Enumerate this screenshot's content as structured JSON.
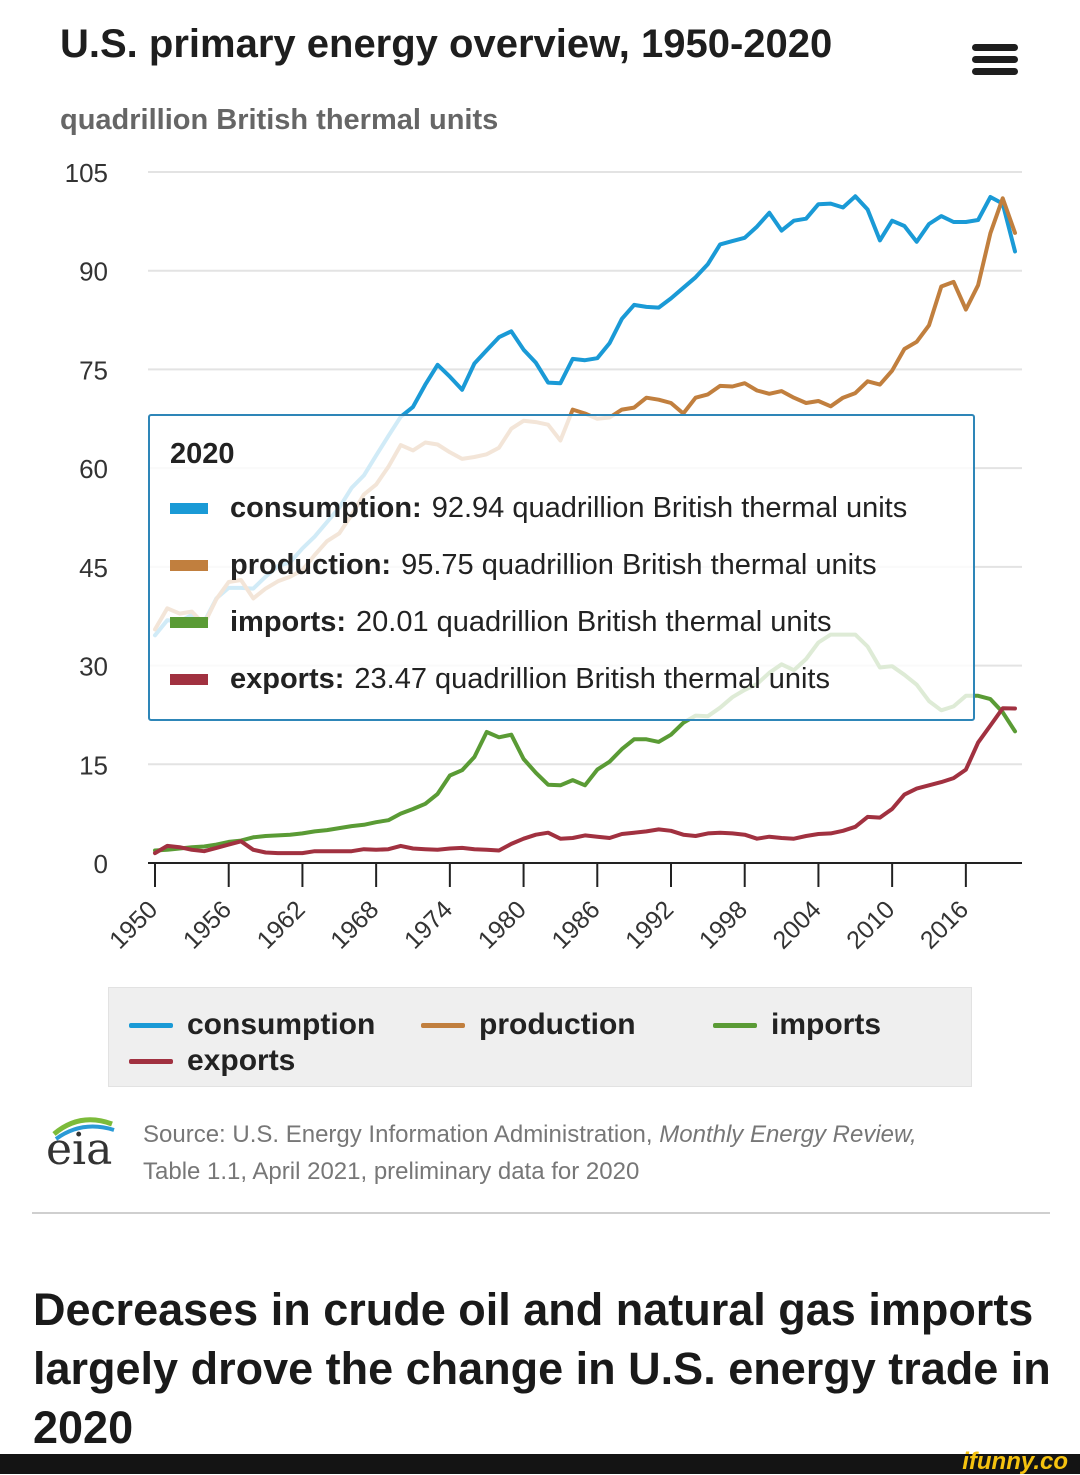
{
  "title": "U.S. primary energy overview, 1950-2020",
  "menu_icon": "hamburger-menu-icon",
  "subtitle": "quadrillion British thermal units",
  "chart_data": {
    "type": "line",
    "title": "U.S. primary energy overview, 1950-2020",
    "ylabel": "quadrillion British thermal units",
    "xlabel": "",
    "ylim": [
      0,
      105
    ],
    "xlim": [
      1950,
      2020
    ],
    "grid": true,
    "yticks": [
      0,
      15,
      30,
      45,
      60,
      75,
      90,
      105
    ],
    "xticks": [
      "1950",
      "1956",
      "1962",
      "1968",
      "1974",
      "1980",
      "1986",
      "1992",
      "1998",
      "2004",
      "2010",
      "2016"
    ],
    "legend_position": "bottom",
    "series": [
      {
        "name": "consumption",
        "color": "#1a9ad6",
        "x": [
          1950,
          1951,
          1952,
          1953,
          1954,
          1955,
          1956,
          1957,
          1958,
          1959,
          1960,
          1961,
          1962,
          1963,
          1964,
          1965,
          1966,
          1967,
          1968,
          1969,
          1970,
          1971,
          1972,
          1973,
          1974,
          1975,
          1976,
          1977,
          1978,
          1979,
          1980,
          1981,
          1982,
          1983,
          1984,
          1985,
          1986,
          1987,
          1988,
          1989,
          1990,
          1991,
          1992,
          1993,
          1994,
          1995,
          1996,
          1997,
          1998,
          1999,
          2000,
          2001,
          2002,
          2003,
          2004,
          2005,
          2006,
          2007,
          2008,
          2009,
          2010,
          2011,
          2012,
          2013,
          2014,
          2015,
          2016,
          2017,
          2018,
          2019,
          2020
        ],
        "values": [
          34.6,
          36.9,
          36.7,
          37.7,
          36.6,
          40.2,
          41.8,
          41.8,
          41.7,
          43.5,
          45.1,
          45.7,
          47.8,
          49.6,
          51.8,
          54.0,
          57.0,
          58.9,
          61.9,
          64.9,
          67.8,
          69.3,
          72.7,
          75.7,
          73.9,
          71.9,
          75.9,
          77.9,
          79.9,
          80.8,
          78.0,
          76.0,
          73.0,
          72.9,
          76.6,
          76.4,
          76.7,
          79.0,
          82.7,
          84.8,
          84.5,
          84.4,
          85.8,
          87.4,
          89.0,
          91.0,
          94.0,
          94.5,
          95.0,
          96.7,
          98.8,
          96.1,
          97.6,
          97.9,
          100.1,
          100.2,
          99.6,
          101.3,
          99.3,
          94.6,
          97.6,
          96.8,
          94.4,
          97.1,
          98.3,
          97.4,
          97.4,
          97.7,
          101.2,
          100.2,
          92.94
        ]
      },
      {
        "name": "production",
        "color": "#c17f3e",
        "x": [
          1950,
          1951,
          1952,
          1953,
          1954,
          1955,
          1956,
          1957,
          1958,
          1959,
          1960,
          1961,
          1962,
          1963,
          1964,
          1965,
          1966,
          1967,
          1968,
          1969,
          1970,
          1971,
          1972,
          1973,
          1974,
          1975,
          1976,
          1977,
          1978,
          1979,
          1980,
          1981,
          1982,
          1983,
          1984,
          1985,
          1986,
          1987,
          1988,
          1989,
          1990,
          1991,
          1992,
          1993,
          1994,
          1995,
          1996,
          1997,
          1998,
          1999,
          2000,
          2001,
          2002,
          2003,
          2004,
          2005,
          2006,
          2007,
          2008,
          2009,
          2010,
          2011,
          2012,
          2013,
          2014,
          2015,
          2016,
          2017,
          2018,
          2019,
          2020
        ],
        "values": [
          35.5,
          38.7,
          37.9,
          38.2,
          36.3,
          40.1,
          42.7,
          43.0,
          40.2,
          41.7,
          42.8,
          43.5,
          44.5,
          46.8,
          48.9,
          50.1,
          52.9,
          56.0,
          57.5,
          60.2,
          63.5,
          62.7,
          63.9,
          63.6,
          62.4,
          61.4,
          61.7,
          62.1,
          63.1,
          66.0,
          67.2,
          67.0,
          66.6,
          64.2,
          68.9,
          68.3,
          67.5,
          67.7,
          68.9,
          69.2,
          70.7,
          70.4,
          69.9,
          68.3,
          70.7,
          71.2,
          72.5,
          72.4,
          72.9,
          71.8,
          71.3,
          71.7,
          70.7,
          69.9,
          70.2,
          69.4,
          70.7,
          71.4,
          73.2,
          72.7,
          74.8,
          78.1,
          79.2,
          81.7,
          87.6,
          88.3,
          84.1,
          87.8,
          95.7,
          101.0,
          95.75
        ]
      },
      {
        "name": "imports",
        "color": "#5a9b35",
        "x": [
          1950,
          1951,
          1952,
          1953,
          1954,
          1955,
          1956,
          1957,
          1958,
          1959,
          1960,
          1961,
          1962,
          1963,
          1964,
          1965,
          1966,
          1967,
          1968,
          1969,
          1970,
          1971,
          1972,
          1973,
          1974,
          1975,
          1976,
          1977,
          1978,
          1979,
          1980,
          1981,
          1982,
          1983,
          1984,
          1985,
          1986,
          1987,
          1988,
          1989,
          1990,
          1991,
          1992,
          1993,
          1994,
          1995,
          1996,
          1997,
          1998,
          1999,
          2000,
          2001,
          2002,
          2003,
          2004,
          2005,
          2006,
          2007,
          2008,
          2009,
          2010,
          2011,
          2012,
          2013,
          2014,
          2015,
          2016,
          2017,
          2018,
          2019,
          2020
        ],
        "values": [
          1.9,
          2.0,
          2.2,
          2.4,
          2.5,
          2.8,
          3.2,
          3.4,
          3.9,
          4.1,
          4.2,
          4.3,
          4.5,
          4.8,
          5.0,
          5.3,
          5.6,
          5.8,
          6.2,
          6.5,
          7.5,
          8.2,
          9.0,
          10.5,
          13.3,
          14.1,
          16.1,
          19.9,
          19.1,
          19.5,
          15.8,
          13.7,
          11.9,
          11.8,
          12.6,
          11.8,
          14.2,
          15.4,
          17.3,
          18.8,
          18.8,
          18.4,
          19.5,
          21.3,
          22.4,
          22.3,
          23.6,
          25.2,
          26.3,
          27.2,
          28.9,
          30.2,
          29.3,
          31.0,
          33.5,
          34.7,
          34.7,
          34.7,
          32.9,
          29.7,
          29.9,
          28.6,
          27.1,
          24.6,
          23.2,
          23.8,
          25.4,
          25.4,
          24.9,
          22.9,
          20.01
        ]
      },
      {
        "name": "exports",
        "color": "#a13140",
        "x": [
          1950,
          1951,
          1952,
          1953,
          1954,
          1955,
          1956,
          1957,
          1958,
          1959,
          1960,
          1961,
          1962,
          1963,
          1964,
          1965,
          1966,
          1967,
          1968,
          1969,
          1970,
          1971,
          1972,
          1973,
          1974,
          1975,
          1976,
          1977,
          1978,
          1979,
          1980,
          1981,
          1982,
          1983,
          1984,
          1985,
          1986,
          1987,
          1988,
          1989,
          1990,
          1991,
          1992,
          1993,
          1994,
          1995,
          1996,
          1997,
          1998,
          1999,
          2000,
          2001,
          2002,
          2003,
          2004,
          2005,
          2006,
          2007,
          2008,
          2009,
          2010,
          2011,
          2012,
          2013,
          2014,
          2015,
          2016,
          2017,
          2018,
          2019,
          2020
        ],
        "values": [
          1.5,
          2.6,
          2.4,
          2.0,
          1.8,
          2.3,
          2.8,
          3.3,
          2.0,
          1.6,
          1.5,
          1.5,
          1.5,
          1.8,
          1.8,
          1.8,
          1.8,
          2.1,
          2.0,
          2.1,
          2.6,
          2.2,
          2.1,
          2.0,
          2.2,
          2.3,
          2.1,
          2.0,
          1.9,
          2.9,
          3.7,
          4.3,
          4.6,
          3.7,
          3.8,
          4.2,
          4.0,
          3.8,
          4.4,
          4.6,
          4.8,
          5.1,
          4.9,
          4.3,
          4.1,
          4.5,
          4.6,
          4.5,
          4.3,
          3.7,
          4.0,
          3.8,
          3.7,
          4.1,
          4.4,
          4.5,
          4.9,
          5.5,
          7.0,
          6.9,
          8.2,
          10.4,
          11.3,
          11.8,
          12.3,
          12.9,
          14.2,
          18.3,
          20.9,
          23.5,
          23.47
        ]
      }
    ]
  },
  "tooltip": {
    "year": "2020",
    "rows": [
      {
        "label": "consumption:",
        "value": "92.94 quadrillion British thermal units",
        "color": "#1a9ad6"
      },
      {
        "label": "production:",
        "value": "95.75 quadrillion British thermal units",
        "color": "#c17f3e"
      },
      {
        "label": "imports:",
        "value": "20.01 quadrillion British thermal units",
        "color": "#5a9b35"
      },
      {
        "label": "exports:",
        "value": "23.47 quadrillion British thermal units",
        "color": "#a13140"
      }
    ]
  },
  "legend": {
    "items": [
      {
        "label": "consumption",
        "color": "#1a9ad6"
      },
      {
        "label": "production",
        "color": "#c17f3e"
      },
      {
        "label": "imports",
        "color": "#5a9b35"
      },
      {
        "label": "exports",
        "color": "#a13140"
      }
    ]
  },
  "logo": {
    "text": "eia",
    "icon": "eia-logo-icon"
  },
  "source": {
    "prefix": "Source: U.S. Energy Information Administration,",
    "publication": "Monthly Energy Review,",
    "line2": "Table 1.1, April 2021, preliminary data for 2020"
  },
  "headline": "Decreases in crude oil and natural gas imports largely drove the change in U.S. energy trade in 2020",
  "footer": {
    "brand": "ifunny.co"
  }
}
